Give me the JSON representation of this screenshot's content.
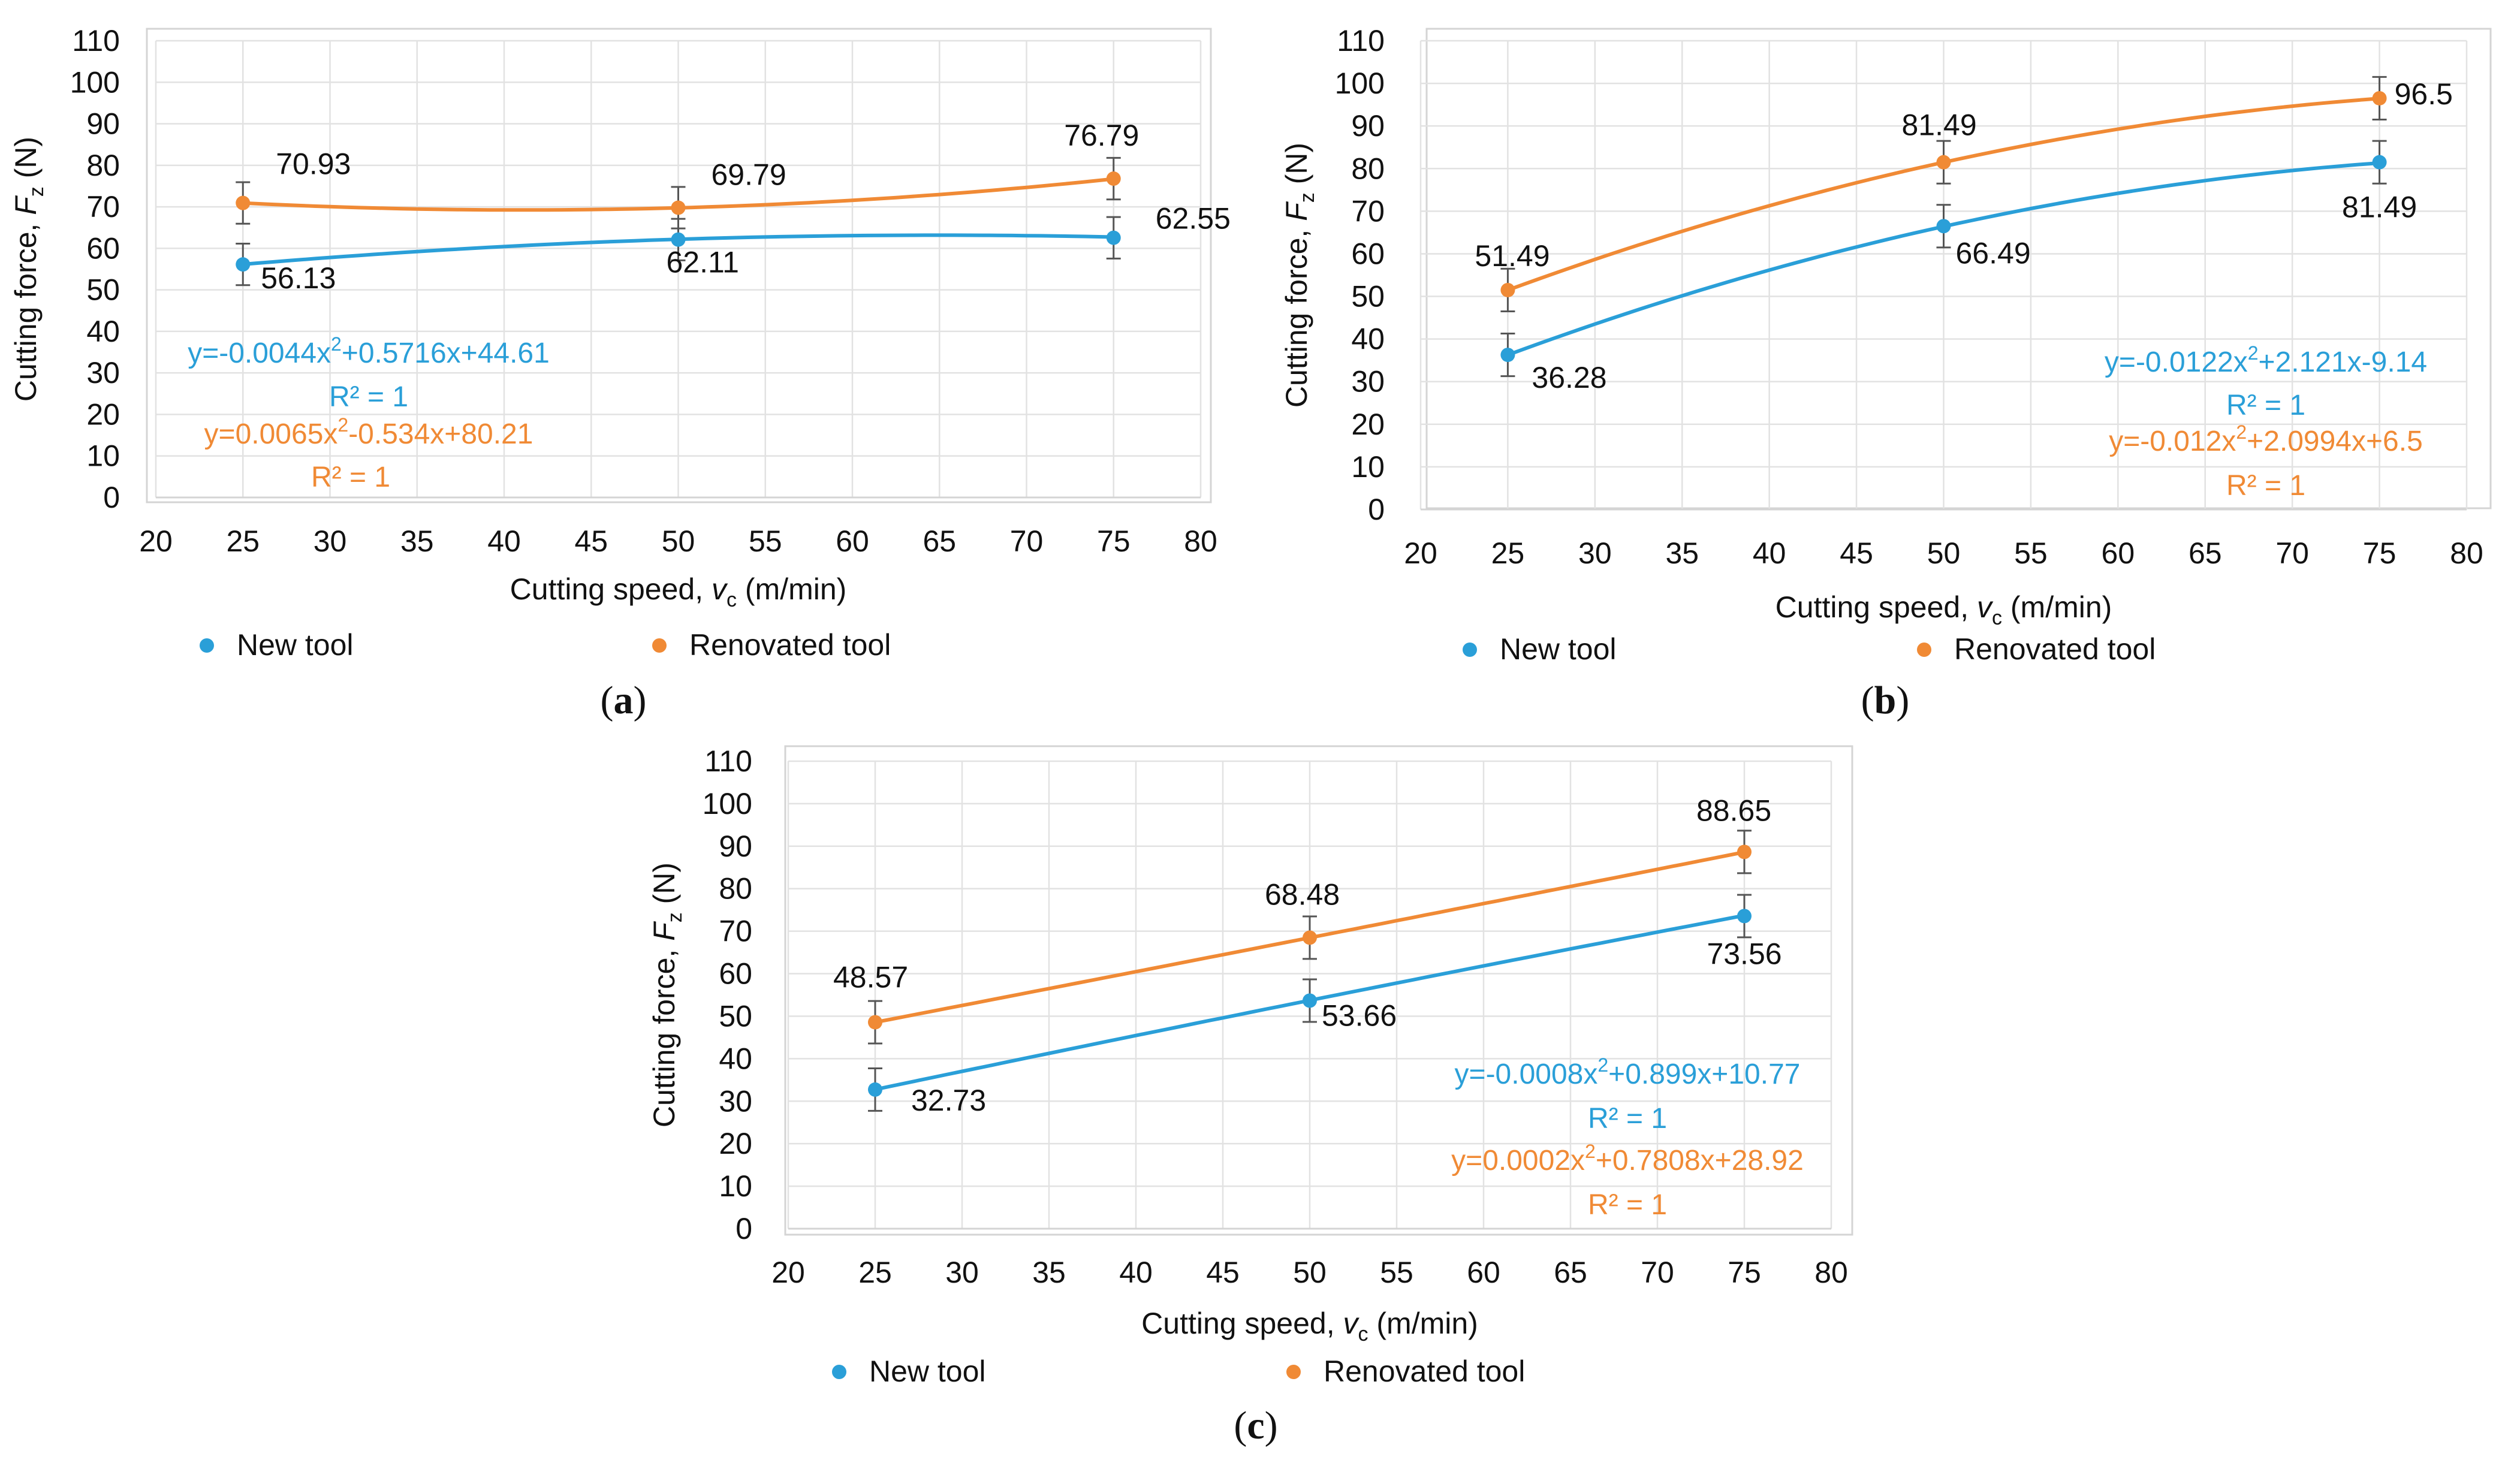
{
  "colors": {
    "new_tool": "#2a9fd8",
    "renovated_tool": "#f08a35",
    "grid": "#e2e2e2",
    "axis": "#d4d4d4",
    "error_bar": "#555555",
    "text": "#111111"
  },
  "chart_data": [
    {
      "panel": "a",
      "panel_label": "(a)",
      "panel_letter": "a",
      "type": "scatter",
      "x": [
        25,
        50,
        75
      ],
      "series": [
        {
          "name": "New tool",
          "values": [
            56.13,
            62.11,
            62.55
          ],
          "labels": [
            "56.13",
            "62.11",
            "62.55"
          ],
          "error": 5,
          "trendline": {
            "type": "poly2",
            "a": -0.0044,
            "b": 0.5716,
            "c": 44.61
          },
          "equation": {
            "prefix": "y=-0.0044x",
            "sup": "2",
            "suffix": "+0.5716x+44.61"
          },
          "r2": "R² = 1"
        },
        {
          "name": "Renovated tool",
          "values": [
            70.93,
            69.79,
            76.79
          ],
          "labels": [
            "70.93",
            "69.79",
            "76.79"
          ],
          "error": 5,
          "trendline": {
            "type": "poly2",
            "a": 0.0065,
            "b": -0.534,
            "c": 80.21
          },
          "equation": {
            "prefix": "y=0.0065x",
            "sup": "2",
            "suffix": "-0.534x+80.21"
          },
          "r2": "R² = 1"
        }
      ],
      "xlim": [
        20,
        80
      ],
      "ylim": [
        0,
        110
      ],
      "x_ticks": [
        20,
        25,
        30,
        35,
        40,
        45,
        50,
        55,
        60,
        65,
        70,
        75,
        80
      ],
      "y_ticks": [
        0,
        10,
        20,
        30,
        40,
        50,
        60,
        70,
        80,
        90,
        100,
        110
      ],
      "xlabel": {
        "main": "Cutting speed, ",
        "var": "v",
        "sub": "c",
        "unit": " (m/min)"
      },
      "ylabel": {
        "main": "Cutting force, ",
        "var": "F",
        "sub": "z",
        "unit": " (N)"
      },
      "grid": true,
      "legend": [
        "New tool",
        "Renovated tool"
      ]
    },
    {
      "panel": "b",
      "panel_label": "(b)",
      "panel_letter": "b",
      "type": "scatter",
      "x": [
        25,
        50,
        75
      ],
      "series": [
        {
          "name": "New tool",
          "values": [
            36.28,
            66.49,
            81.49
          ],
          "labels": [
            "36.28",
            "66.49",
            "81.49"
          ],
          "error": 5,
          "trendline": {
            "type": "poly2",
            "a": -0.0122,
            "b": 2.121,
            "c": -9.14
          },
          "equation": {
            "prefix": "y=-0.0122x",
            "sup": "2",
            "suffix": "+2.121x-9.14"
          },
          "r2": "R² = 1"
        },
        {
          "name": "Renovated tool",
          "values": [
            51.49,
            81.49,
            96.5
          ],
          "labels": [
            "51.49",
            "81.49",
            "96.5"
          ],
          "error": 5,
          "trendline": {
            "type": "poly2",
            "a": -0.012,
            "b": 2.0994,
            "c": 6.5
          },
          "equation": {
            "prefix": "y=-0.012x",
            "sup": "2",
            "suffix": "+2.0994x+6.5"
          },
          "r2": "R² = 1"
        }
      ],
      "xlim": [
        20,
        80
      ],
      "ylim": [
        0,
        110
      ],
      "x_ticks": [
        20,
        25,
        30,
        35,
        40,
        45,
        50,
        55,
        60,
        65,
        70,
        75,
        80
      ],
      "y_ticks": [
        0,
        10,
        20,
        30,
        40,
        50,
        60,
        70,
        80,
        90,
        100,
        110
      ],
      "xlabel": {
        "main": "Cutting speed, ",
        "var": "v",
        "sub": "c",
        "unit": " (m/min)"
      },
      "ylabel": {
        "main": "Cutting force, ",
        "var": "F",
        "sub": "z",
        "unit": " (N)"
      },
      "grid": true,
      "legend": [
        "New tool",
        "Renovated tool"
      ]
    },
    {
      "panel": "c",
      "panel_label": "(c)",
      "panel_letter": "c",
      "type": "scatter",
      "x": [
        25,
        50,
        75
      ],
      "series": [
        {
          "name": "New tool",
          "values": [
            32.73,
            53.66,
            73.56
          ],
          "labels": [
            "32.73",
            "53.66",
            "73.56"
          ],
          "error": 5,
          "trendline": {
            "type": "poly2",
            "a": -0.0008,
            "b": 0.899,
            "c": 10.77
          },
          "equation": {
            "prefix": "y=-0.0008x",
            "sup": "2",
            "suffix": "+0.899x+10.77"
          },
          "r2": "R² = 1"
        },
        {
          "name": "Renovated tool",
          "values": [
            48.57,
            68.48,
            88.65
          ],
          "labels": [
            "48.57",
            "68.48",
            "88.65"
          ],
          "error": 5,
          "trendline": {
            "type": "poly2",
            "a": 0.0002,
            "b": 0.7808,
            "c": 28.92
          },
          "equation": {
            "prefix": "y=0.0002x",
            "sup": "2",
            "suffix": "+0.7808x+28.92"
          },
          "r2": "R² = 1"
        }
      ],
      "xlim": [
        20,
        80
      ],
      "ylim": [
        0,
        110
      ],
      "x_ticks": [
        20,
        25,
        30,
        35,
        40,
        45,
        50,
        55,
        60,
        65,
        70,
        75,
        80
      ],
      "y_ticks": [
        0,
        10,
        20,
        30,
        40,
        50,
        60,
        70,
        80,
        90,
        100,
        110
      ],
      "xlabel": {
        "main": "Cutting speed, ",
        "var": "v",
        "sub": "c",
        "unit": " (m/min)"
      },
      "ylabel": {
        "main": "Cutting force, ",
        "var": "F",
        "sub": "z",
        "unit": " (N)"
      },
      "grid": true,
      "legend": [
        "New tool",
        "Renovated tool"
      ]
    }
  ]
}
